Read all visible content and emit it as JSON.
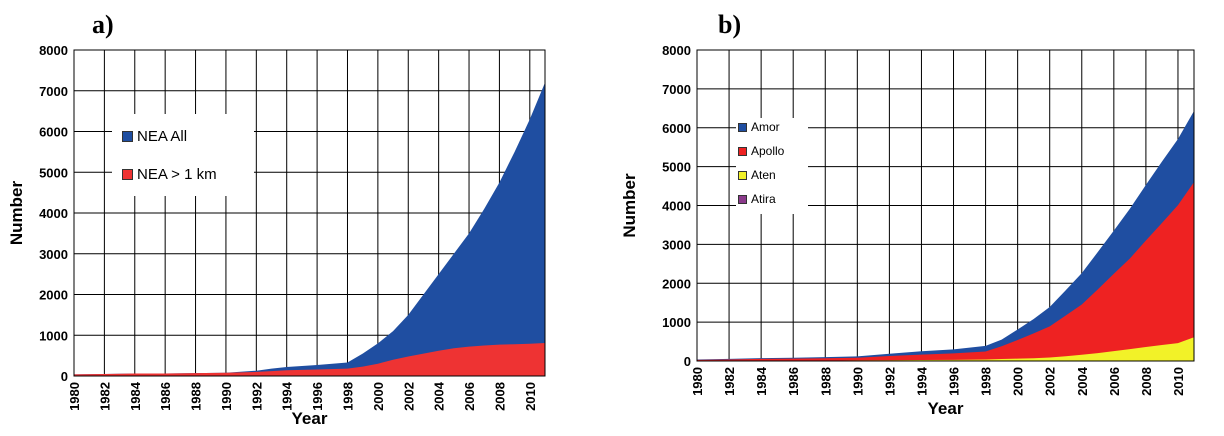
{
  "panels": [
    {
      "label": "a)",
      "chart_data": {
        "type": "area",
        "x": [
          1980,
          1982,
          1984,
          1986,
          1988,
          1990,
          1992,
          1993,
          1994,
          1996,
          1998,
          1999,
          2000,
          2001,
          2002,
          2003,
          2004,
          2005,
          2006,
          2007,
          2008,
          2009,
          2010,
          2011
        ],
        "series": [
          {
            "name": "NEA All",
            "color": "#1f4ea1",
            "values": [
              40,
              50,
              60,
              60,
              70,
              80,
              130,
              180,
              220,
              270,
              330,
              550,
              800,
              1100,
              1500,
              2000,
              2500,
              3000,
              3500,
              4100,
              4750,
              5500,
              6300,
              7200
            ]
          },
          {
            "name": "NEA > 1 km",
            "color": "#ee3333",
            "values": [
              40,
              50,
              60,
              60,
              70,
              80,
              100,
              120,
              140,
              160,
              180,
              230,
              300,
              400,
              480,
              550,
              620,
              680,
              720,
              750,
              770,
              780,
              790,
              810
            ]
          }
        ],
        "xlabel": "Year",
        "ylabel": "Number",
        "ylim": [
          0,
          8000
        ],
        "yticks": [
          0,
          1000,
          2000,
          3000,
          4000,
          5000,
          6000,
          7000,
          8000
        ],
        "xticks": [
          1980,
          1982,
          1984,
          1986,
          1988,
          1990,
          1992,
          1994,
          1996,
          1998,
          2000,
          2002,
          2004,
          2006,
          2008,
          2010
        ],
        "grid": true,
        "legend": "upper-left"
      }
    },
    {
      "label": "b)",
      "chart_data": {
        "type": "area",
        "stacked": true,
        "x": [
          1980,
          1982,
          1984,
          1986,
          1988,
          1990,
          1992,
          1994,
          1996,
          1998,
          1999,
          2000,
          2001,
          2002,
          2003,
          2004,
          2005,
          2006,
          2007,
          2008,
          2009,
          2010,
          2011
        ],
        "series": [
          {
            "name": "Amor",
            "color": "#1f4ea1",
            "values": [
              10,
              15,
              20,
              25,
              30,
              35,
              55,
              85,
              105,
              145,
              170,
              270,
              370,
              500,
              650,
              810,
              960,
              1110,
              1280,
              1430,
              1580,
              1700,
              1830
            ]
          },
          {
            "name": "Apollo",
            "color": "#ee2222",
            "values": [
              25,
              35,
              45,
              50,
              60,
              70,
              110,
              140,
              165,
              205,
              330,
              480,
              640,
              800,
              1050,
              1290,
              1640,
              1990,
              2330,
              2740,
              3140,
              3550,
              3990
            ]
          },
          {
            "name": "Aten",
            "color": "#f2f228",
            "values": [
              5,
              5,
              10,
              10,
              10,
              15,
              20,
              25,
              30,
              40,
              50,
              60,
              70,
              90,
              120,
              160,
              200,
              250,
              300,
              350,
              400,
              450,
              600
            ]
          },
          {
            "name": "Atira",
            "color": "#8b3a8b",
            "values": [
              0,
              0,
              0,
              0,
              0,
              0,
              0,
              0,
              0,
              0,
              0,
              0,
              0,
              0,
              1,
              2,
              3,
              5,
              7,
              9,
              10,
              11,
              12
            ]
          }
        ],
        "xlabel": "Year",
        "ylabel": "Number",
        "ylim": [
          0,
          8000
        ],
        "yticks": [
          0,
          1000,
          2000,
          3000,
          4000,
          5000,
          6000,
          7000,
          8000
        ],
        "xticks": [
          1980,
          1982,
          1984,
          1986,
          1988,
          1990,
          1992,
          1994,
          1996,
          1998,
          2000,
          2002,
          2004,
          2006,
          2008,
          2010
        ],
        "xlim": [
          1980,
          2011
        ],
        "grid": true,
        "legend": "upper-left"
      }
    }
  ]
}
